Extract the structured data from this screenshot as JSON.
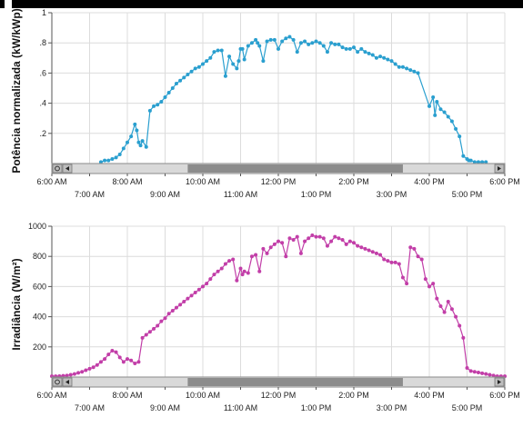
{
  "chart_data": [
    {
      "type": "line",
      "ylabel": "Potência normalizada (kW/kWp)",
      "y_tick_labels": [
        "1",
        ".8",
        ".6",
        ".4",
        ".2"
      ],
      "y_ticks": [
        1,
        0.8,
        0.6,
        0.4,
        0.2
      ],
      "ylim": [
        0,
        1
      ],
      "x_unit": "hours",
      "xlim": [
        6,
        18
      ],
      "x_tick_labels_upper": [
        "6:00 AM",
        "8:00 AM",
        "10:00 AM",
        "12:00 PM",
        "2:00 PM",
        "4:00 PM",
        "6:00 PM"
      ],
      "x_tick_labels_lower": [
        "7:00 AM",
        "9:00 AM",
        "11:00 AM",
        "1:00 PM",
        "3:00 PM",
        "5:00 PM"
      ],
      "grid": true,
      "color": "#2a9fcf",
      "series": [
        {
          "x": [
            7.3,
            7.4,
            7.5,
            7.6,
            7.7,
            7.8,
            7.9,
            8.0,
            8.1,
            8.2,
            8.25,
            8.3,
            8.35,
            8.4,
            8.5,
            8.6,
            8.7,
            8.8,
            8.9,
            9.0,
            9.1,
            9.2,
            9.3,
            9.4,
            9.5,
            9.6,
            9.7,
            9.8,
            9.9,
            10.0,
            10.1,
            10.2,
            10.3,
            10.4,
            10.5,
            10.6,
            10.7,
            10.8,
            10.9,
            10.95,
            11.0,
            11.05,
            11.1,
            11.2,
            11.3,
            11.4,
            11.45,
            11.5,
            11.6,
            11.7,
            11.8,
            11.9,
            12.0,
            12.1,
            12.2,
            12.3,
            12.4,
            12.5,
            12.6,
            12.7,
            12.8,
            12.9,
            13.0,
            13.1,
            13.2,
            13.3,
            13.4,
            13.5,
            13.6,
            13.7,
            13.8,
            13.9,
            14.0,
            14.1,
            14.2,
            14.3,
            14.4,
            14.5,
            14.6,
            14.7,
            14.8,
            14.9,
            15.0,
            15.1,
            15.2,
            15.3,
            15.4,
            15.5,
            15.6,
            15.7,
            16.0,
            16.1,
            16.15,
            16.2,
            16.3,
            16.4,
            16.5,
            16.6,
            16.7,
            16.8,
            16.9,
            17.0,
            17.05,
            17.1,
            17.2,
            17.3,
            17.4,
            17.5
          ],
          "y": [
            0.01,
            0.02,
            0.02,
            0.03,
            0.04,
            0.06,
            0.1,
            0.14,
            0.18,
            0.26,
            0.22,
            0.14,
            0.12,
            0.15,
            0.11,
            0.35,
            0.38,
            0.39,
            0.41,
            0.44,
            0.47,
            0.5,
            0.53,
            0.55,
            0.57,
            0.59,
            0.61,
            0.63,
            0.64,
            0.66,
            0.68,
            0.7,
            0.74,
            0.75,
            0.75,
            0.58,
            0.71,
            0.66,
            0.63,
            0.68,
            0.76,
            0.76,
            0.69,
            0.78,
            0.8,
            0.82,
            0.8,
            0.78,
            0.68,
            0.81,
            0.82,
            0.82,
            0.76,
            0.81,
            0.83,
            0.84,
            0.82,
            0.74,
            0.8,
            0.81,
            0.79,
            0.8,
            0.81,
            0.8,
            0.78,
            0.74,
            0.8,
            0.79,
            0.79,
            0.77,
            0.76,
            0.76,
            0.77,
            0.74,
            0.76,
            0.74,
            0.73,
            0.72,
            0.7,
            0.71,
            0.7,
            0.69,
            0.68,
            0.66,
            0.64,
            0.64,
            0.63,
            0.62,
            0.61,
            0.6,
            0.38,
            0.44,
            0.32,
            0.41,
            0.36,
            0.34,
            0.31,
            0.28,
            0.23,
            0.18,
            0.05,
            0.03,
            0.02,
            0.02,
            0.01,
            0.01,
            0.01,
            0.01
          ]
        }
      ]
    },
    {
      "type": "line",
      "ylabel": "Irradiância (W/m²)",
      "y_tick_labels": [
        "1000",
        "800",
        "600",
        "400",
        "200"
      ],
      "y_ticks": [
        1000,
        800,
        600,
        400,
        200
      ],
      "ylim": [
        0,
        1000
      ],
      "x_unit": "hours",
      "xlim": [
        6,
        18
      ],
      "x_tick_labels_upper": [
        "6:00 AM",
        "8:00 AM",
        "10:00 AM",
        "12:00 PM",
        "2:00 PM",
        "4:00 PM",
        "6:00 PM"
      ],
      "x_tick_labels_lower": [
        "7:00 AM",
        "9:00 AM",
        "11:00 AM",
        "1:00 PM",
        "3:00 PM",
        "5:00 PM"
      ],
      "grid": true,
      "color": "#c23ea8",
      "series": [
        {
          "x": [
            6.0,
            6.1,
            6.2,
            6.3,
            6.4,
            6.5,
            6.6,
            6.7,
            6.8,
            6.9,
            7.0,
            7.1,
            7.2,
            7.3,
            7.4,
            7.5,
            7.6,
            7.7,
            7.8,
            7.9,
            8.0,
            8.1,
            8.2,
            8.3,
            8.4,
            8.5,
            8.6,
            8.7,
            8.8,
            8.9,
            9.0,
            9.1,
            9.2,
            9.3,
            9.4,
            9.5,
            9.6,
            9.7,
            9.8,
            9.9,
            10.0,
            10.1,
            10.2,
            10.3,
            10.4,
            10.5,
            10.6,
            10.7,
            10.8,
            10.9,
            11.0,
            11.05,
            11.1,
            11.2,
            11.3,
            11.4,
            11.5,
            11.6,
            11.7,
            11.8,
            11.9,
            12.0,
            12.1,
            12.2,
            12.3,
            12.4,
            12.5,
            12.6,
            12.7,
            12.8,
            12.9,
            13.0,
            13.1,
            13.2,
            13.3,
            13.4,
            13.5,
            13.6,
            13.7,
            13.8,
            13.9,
            14.0,
            14.1,
            14.2,
            14.3,
            14.4,
            14.5,
            14.6,
            14.7,
            14.8,
            14.9,
            15.0,
            15.1,
            15.2,
            15.3,
            15.4,
            15.5,
            15.6,
            15.7,
            15.8,
            15.9,
            16.0,
            16.1,
            16.2,
            16.3,
            16.4,
            16.5,
            16.6,
            16.7,
            16.8,
            16.9,
            17.0,
            17.1,
            17.2,
            17.3,
            17.4,
            17.5,
            17.6,
            17.7,
            17.8,
            17.9,
            18.0
          ],
          "y": [
            5,
            5,
            6,
            8,
            10,
            15,
            20,
            28,
            35,
            45,
            55,
            65,
            80,
            100,
            120,
            150,
            175,
            165,
            130,
            100,
            120,
            110,
            90,
            100,
            260,
            280,
            300,
            320,
            340,
            370,
            390,
            420,
            440,
            460,
            480,
            500,
            520,
            540,
            560,
            580,
            600,
            620,
            650,
            680,
            700,
            720,
            750,
            770,
            780,
            640,
            720,
            680,
            700,
            690,
            800,
            810,
            700,
            850,
            820,
            860,
            880,
            900,
            890,
            800,
            920,
            910,
            930,
            820,
            900,
            920,
            940,
            930,
            930,
            920,
            870,
            900,
            930,
            920,
            910,
            880,
            900,
            890,
            870,
            860,
            850,
            840,
            830,
            820,
            810,
            780,
            770,
            760,
            760,
            750,
            660,
            620,
            860,
            850,
            800,
            780,
            650,
            600,
            620,
            520,
            470,
            430,
            500,
            450,
            400,
            340,
            260,
            60,
            40,
            35,
            30,
            25,
            20,
            15,
            10,
            5,
            5,
            5
          ]
        }
      ]
    }
  ]
}
